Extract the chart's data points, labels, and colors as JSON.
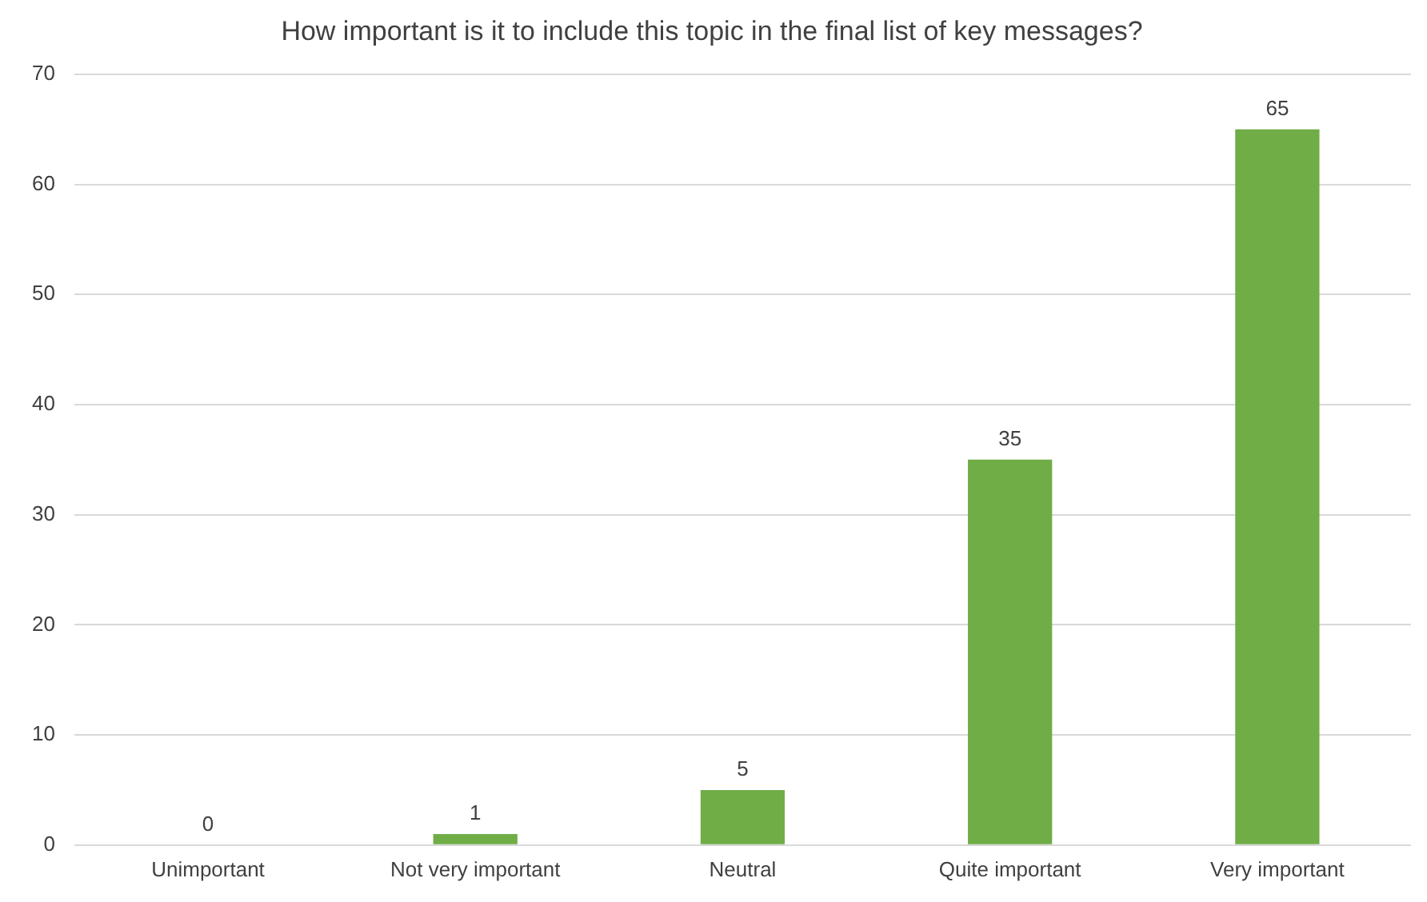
{
  "chart_data": {
    "type": "bar",
    "title": "How important is it to include this topic in the final list of key messages?",
    "categories": [
      "Unimportant",
      "Not very important",
      "Neutral",
      "Quite important",
      "Very important"
    ],
    "values": [
      0,
      1,
      5,
      35,
      65
    ],
    "color": "#70ad47",
    "ylim": [
      0,
      70
    ],
    "yticks": [
      0,
      10,
      20,
      30,
      40,
      50,
      60,
      70
    ],
    "grid": "y",
    "data_labels": true,
    "legend": false
  }
}
